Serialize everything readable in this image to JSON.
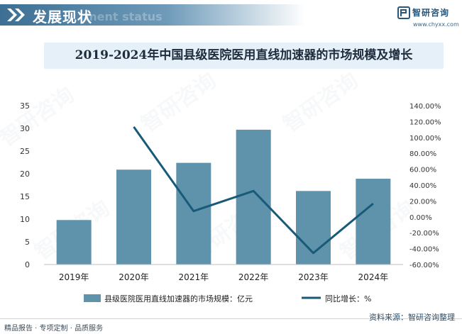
{
  "header": {
    "title": "发展现状",
    "ghost_text": "ment status"
  },
  "brand": {
    "name": "智研咨询",
    "url": "www.chyxx.com"
  },
  "watermark": "智研咨询",
  "chart_data": {
    "type": "bar",
    "title": "2019-2024年中国县级医院医用直线加速器的市场规模及增长",
    "categories": [
      "2019年",
      "2020年",
      "2021年",
      "2022年",
      "2023年",
      "2024年"
    ],
    "series": [
      {
        "name": "县级医院医用直线加速器的市场规模：亿元",
        "type": "bar",
        "axis": "left",
        "color": "#5f92ab",
        "values": [
          9.8,
          20.9,
          22.4,
          29.7,
          16.2,
          18.9
        ]
      },
      {
        "name": "同比增长：%",
        "type": "line",
        "axis": "right",
        "color": "#185a78",
        "values": [
          null,
          113.3,
          7.2,
          32.6,
          -45.5,
          16.7
        ]
      }
    ],
    "y_left": {
      "min": 0,
      "max": 35,
      "ticks": [
        "0",
        "5",
        "10",
        "15",
        "20",
        "25",
        "30",
        "35"
      ]
    },
    "y_right": {
      "min": -60,
      "max": 140,
      "ticks": [
        "-60.00%",
        "-40.00%",
        "-20.00%",
        "0.00%",
        "20.00%",
        "40.00%",
        "60.00%",
        "80.00%",
        "100.00%",
        "120.00%",
        "140.00%"
      ]
    },
    "grid": false,
    "legend_position": "bottom"
  },
  "footer": {
    "left": "精品报告 · 专项定制 · 品质服务",
    "right": "资料来源：智研咨询整理"
  }
}
